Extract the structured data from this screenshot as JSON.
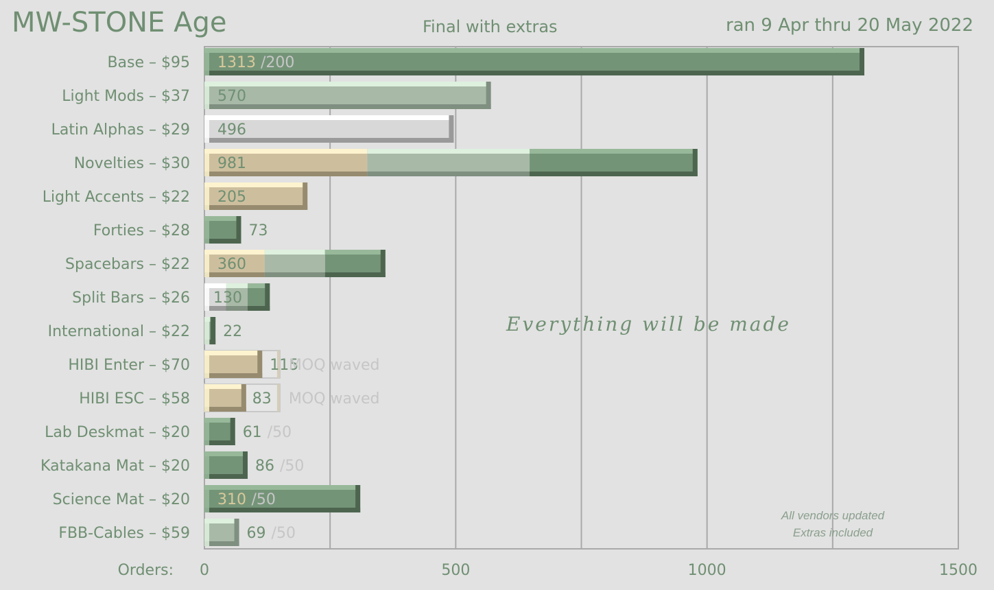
{
  "title": "MW-STONE Age",
  "subtitle": "Final with extras",
  "dates": "ran 9 Apr thru 20 May 2022",
  "chart_data": {
    "type": "bar",
    "orientation": "horizontal",
    "xlabel": "Orders:",
    "xlim": [
      0,
      1500
    ],
    "xticks": [
      0,
      500,
      1000,
      1500
    ],
    "grid": true,
    "colors": {
      "dark": "#749478",
      "light": "#a8b9a8",
      "white": "#d8d8d8",
      "tan": "#cdbf9e",
      "label_on_dark": "#d8c99a",
      "label_default": "#6f8f72",
      "dim": "#c6c6c6"
    },
    "categories": [
      "Base – $95",
      "Light Mods – $37",
      "Latin Alphas – $29",
      "Novelties – $30",
      "Light Accents – $22",
      "Forties – $28",
      "Spacebars – $22",
      "Split Bars – $26",
      "International – $22",
      "HIBI Enter – $70",
      "HIBI ESC – $58",
      "Lab Deskmat – $20",
      "Katakana Mat – $20",
      "Science Mat – $20",
      "FBB-Cables – $59"
    ],
    "bars": [
      {
        "category": "Base – $95",
        "value": 1313,
        "label": "1313",
        "target": "/200",
        "segments": [
          {
            "color": "dark",
            "value": 1313
          }
        ]
      },
      {
        "category": "Light Mods – $37",
        "value": 570,
        "label": "570",
        "segments": [
          {
            "color": "light",
            "value": 570
          }
        ]
      },
      {
        "category": "Latin Alphas – $29",
        "value": 496,
        "label": "496",
        "segments": [
          {
            "color": "white",
            "value": 496
          }
        ]
      },
      {
        "category": "Novelties – $30",
        "value": 981,
        "label": "981",
        "segments": [
          {
            "color": "tan",
            "value": 324
          },
          {
            "color": "light",
            "value": 323
          },
          {
            "color": "dark",
            "value": 334
          }
        ]
      },
      {
        "category": "Light Accents – $22",
        "value": 205,
        "label": "205",
        "segments": [
          {
            "color": "tan",
            "value": 205
          }
        ]
      },
      {
        "category": "Forties – $28",
        "value": 73,
        "label": "73",
        "segments": [
          {
            "color": "dark",
            "value": 73
          }
        ]
      },
      {
        "category": "Spacebars – $22",
        "value": 360,
        "label": "360",
        "segments": [
          {
            "color": "tan",
            "value": 120
          },
          {
            "color": "light",
            "value": 120
          },
          {
            "color": "dark",
            "value": 120
          }
        ]
      },
      {
        "category": "Split Bars – $26",
        "value": 130,
        "label": "130",
        "segments": [
          {
            "color": "white",
            "value": 43
          },
          {
            "color": "light",
            "value": 43
          },
          {
            "color": "dark",
            "value": 44
          }
        ]
      },
      {
        "category": "International – $22",
        "value": 22,
        "label": "22",
        "segments": [
          {
            "color": "light",
            "value": 11
          },
          {
            "color": "dark",
            "value": 11
          }
        ]
      },
      {
        "category": "HIBI Enter – $70",
        "value": 115,
        "label": "115",
        "note": "MOQ waved",
        "outline": 150,
        "segments": [
          {
            "color": "tan",
            "value": 115
          }
        ]
      },
      {
        "category": "HIBI ESC – $58",
        "value": 83,
        "label": "83",
        "note": "MOQ waved",
        "outline": 150,
        "segments": [
          {
            "color": "tan",
            "value": 83
          }
        ]
      },
      {
        "category": "Lab Deskmat – $20",
        "value": 61,
        "label": "61",
        "target": "/50",
        "segments": [
          {
            "color": "dark",
            "value": 61
          }
        ]
      },
      {
        "category": "Katakana Mat – $20",
        "value": 86,
        "label": "86",
        "target": "/50",
        "segments": [
          {
            "color": "dark",
            "value": 86
          }
        ]
      },
      {
        "category": "Science Mat – $20",
        "value": 310,
        "label": "310",
        "target": "/50",
        "segments": [
          {
            "color": "dark",
            "value": 310
          }
        ]
      },
      {
        "category": "FBB-Cables – $59",
        "value": 69,
        "label": "69",
        "target": "/50",
        "segments": [
          {
            "color": "light",
            "value": 69
          }
        ]
      }
    ],
    "annotations": [
      "Everything will be made"
    ],
    "notes": [
      "All vendors updated",
      "Extras included"
    ]
  }
}
